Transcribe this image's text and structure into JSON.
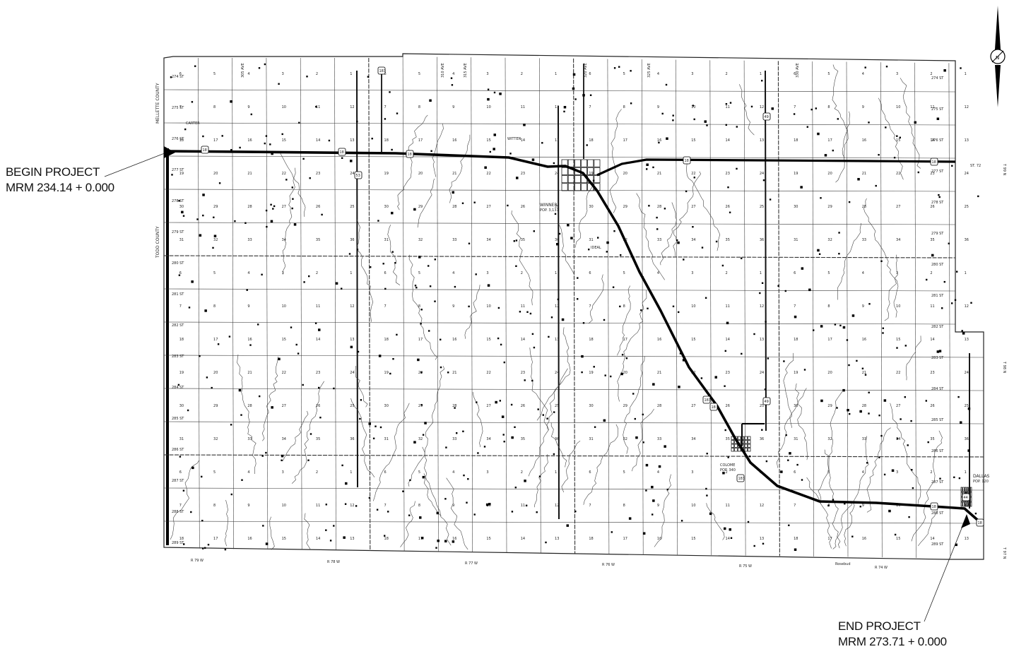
{
  "callouts": {
    "begin_title": "BEGIN PROJECT",
    "begin_mrm": "MRM 234.14 + 0.000",
    "end_title": "END PROJECT",
    "end_mrm": "MRM 273.71 + 0.000"
  },
  "counties": {
    "mellette": "MELLETTE COUNTY",
    "todd": "TODD COUNTY"
  },
  "towns": {
    "carter": "CARTER",
    "winner": "WINNER",
    "winner_pop": "POP. 3,137",
    "colome": "COLOME",
    "colome_pop": "POP. 340",
    "dallas": "DALLAS",
    "dallas_pop": "POP. 120",
    "witten": "WITTEN",
    "ideal": "IDEAL",
    "roseland": "Rosebud"
  },
  "ranges": [
    "R 79 W",
    "R 78 W",
    "R 77 W",
    "R 76 W",
    "R 75 W",
    "R 74 W"
  ],
  "townships": [
    "T 99 N",
    "T 98 N",
    "T 97 N"
  ],
  "streets": [
    "274 ST",
    "275 ST",
    "276 ST",
    "277 ST",
    "278 ST",
    "279 ST",
    "280 ST",
    "281 ST",
    "282 ST",
    "283 ST",
    "284 ST",
    "285 ST",
    "286 ST",
    "287 ST",
    "288 ST",
    "289 ST"
  ],
  "avenues": [
    "305 AVE",
    "310 AVE",
    "315 AVE",
    "320 AVE",
    "325 AVE",
    "330 AVE"
  ],
  "shields": {
    "us18": "18",
    "us183": "183",
    "sd44": "44",
    "sd49": "49",
    "sd53": "53"
  },
  "border_note": "ST. 72",
  "compass_symbol": "N"
}
